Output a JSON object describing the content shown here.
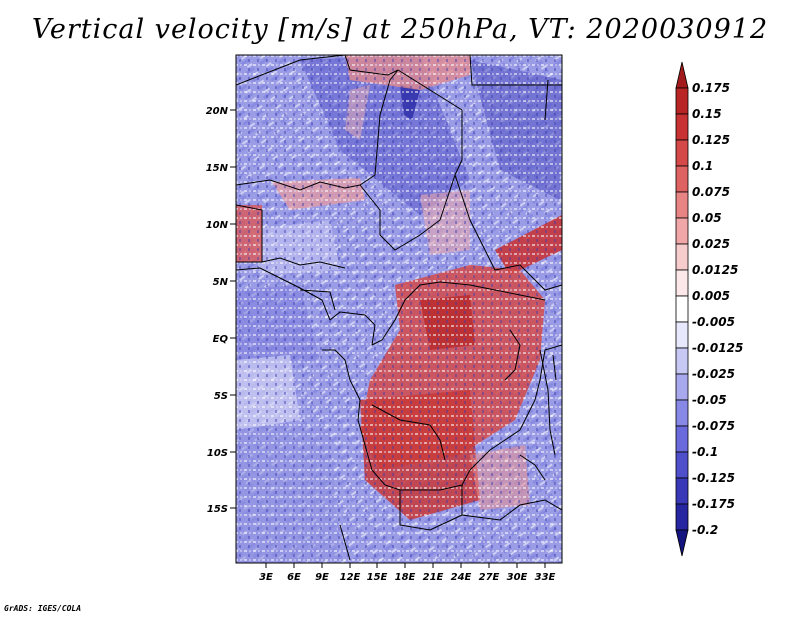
{
  "title": "Vertical velocity [m/s] at 250hPa, VT: 2020030912",
  "credit": "GrADS: IGES/COLA",
  "map": {
    "variable": "vertical velocity",
    "units": "m/s",
    "level": "250hPa",
    "valid_time": "2020030912",
    "lat_labels": [
      "20N",
      "15N",
      "10N",
      "5N",
      "EQ",
      "5S",
      "10S",
      "15S"
    ],
    "lon_labels": [
      "3E",
      "6E",
      "9E",
      "12E",
      "15E",
      "18E",
      "21E",
      "24E",
      "27E",
      "30E",
      "33E"
    ]
  },
  "colorbar": {
    "levels": [
      "0.175",
      "0.15",
      "0.125",
      "0.1",
      "0.075",
      "0.05",
      "0.025",
      "0.0125",
      "0.005",
      "-0.005",
      "-0.0125",
      "-0.025",
      "-0.05",
      "-0.075",
      "-0.1",
      "-0.125",
      "-0.175",
      "-0.2"
    ],
    "colors": [
      "#a21a1c",
      "#b92424",
      "#c93232",
      "#d44848",
      "#de6262",
      "#e88484",
      "#f1a7a7",
      "#f7cccc",
      "#fce8e8",
      "#ffffff",
      "#e8e8fc",
      "#c8c8f4",
      "#a8a8ee",
      "#8888e6",
      "#6a6adc",
      "#4f4fcc",
      "#3838b8",
      "#2626a0",
      "#14147e"
    ]
  }
}
